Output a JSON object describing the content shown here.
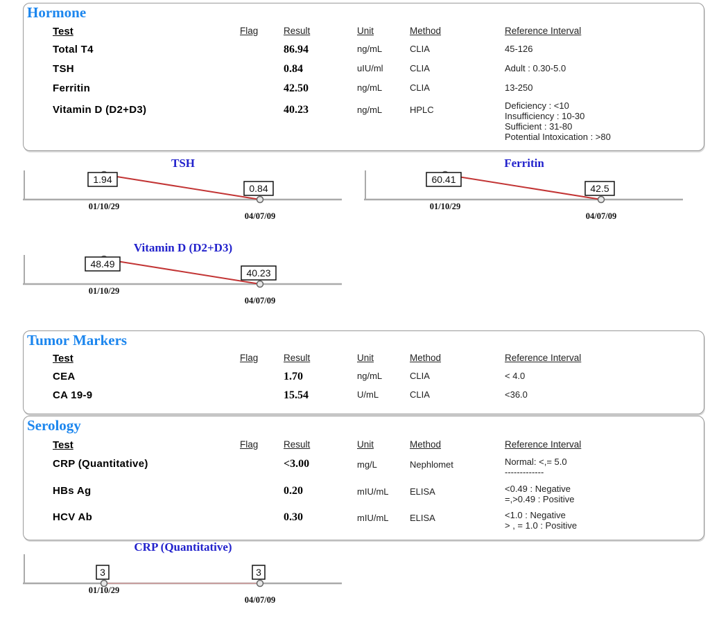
{
  "report": {
    "columns": {
      "test": "Test",
      "flag": "Flag",
      "result": "Result",
      "unit": "Unit",
      "method": "Method",
      "reference": "Reference Interval"
    },
    "sections": [
      {
        "title": "Hormone",
        "rows": [
          {
            "test": "Total T4",
            "flag": "",
            "result": "86.94",
            "unit": "ng/mL",
            "method": "CLIA",
            "reference": [
              "45-126"
            ]
          },
          {
            "test": "TSH",
            "flag": "",
            "result": "0.84",
            "unit": "uIU/ml",
            "method": "CLIA",
            "reference": [
              "Adult : 0.30-5.0"
            ]
          },
          {
            "test": "Ferritin",
            "flag": "",
            "result": "42.50",
            "unit": "ng/mL",
            "method": "CLIA",
            "reference": [
              "13-250"
            ]
          },
          {
            "test": "Vitamin D (D2+D3)",
            "flag": "",
            "result": "40.23",
            "unit": "ng/mL",
            "method": "HPLC",
            "reference": [
              "Deficiency : <10",
              "Insufficiency : 10-30",
              "Sufficient : 31-80",
              "Potential Intoxication : >80"
            ]
          }
        ]
      },
      {
        "title": "Tumor Markers",
        "rows": [
          {
            "test": "CEA",
            "flag": "",
            "result": "1.70",
            "unit": "ng/mL",
            "method": "CLIA",
            "reference": [
              "< 4.0"
            ]
          },
          {
            "test": "CA 19-9",
            "flag": "",
            "result": "15.54",
            "unit": "U/mL",
            "method": "CLIA",
            "reference": [
              "<36.0"
            ]
          }
        ]
      },
      {
        "title": "Serology",
        "rows": [
          {
            "test": "CRP (Quantitative)",
            "flag": "",
            "result": "<3.00",
            "unit": "mg/L",
            "method": "Nephlomet",
            "reference": [
              "Normal: <,= 5.0",
              "-------------"
            ]
          },
          {
            "test": "HBs Ag",
            "flag": "",
            "result": "0.20",
            "unit": "mIU/mL",
            "method": "ELISA",
            "reference": [
              "<0.49   : Negative",
              "=,>0.49   : Positive"
            ]
          },
          {
            "test": "HCV Ab",
            "flag": "",
            "result": "0.30",
            "unit": "mIU/mL",
            "method": "ELISA",
            "reference": [
              "<1.0 : Negative",
              "> , = 1.0 : Positive"
            ]
          }
        ]
      }
    ]
  },
  "chart_data": [
    {
      "type": "line",
      "title": "TSH",
      "x": [
        "01/10/29",
        "04/07/09"
      ],
      "values": [
        1.94,
        0.84
      ],
      "point_labels": [
        "1.94",
        "0.84"
      ],
      "line_color": "#c23434",
      "ylim": [
        0.84,
        1.94
      ],
      "grid": false,
      "legend": "none"
    },
    {
      "type": "line",
      "title": "Ferritin",
      "x": [
        "01/10/29",
        "04/07/09"
      ],
      "values": [
        60.41,
        42.5
      ],
      "point_labels": [
        "60.41",
        "42.5"
      ],
      "line_color": "#c23434",
      "ylim": [
        42.5,
        60.41
      ],
      "grid": false,
      "legend": "none"
    },
    {
      "type": "line",
      "title": "Vitamin D (D2+D3)",
      "x": [
        "01/10/29",
        "04/07/09"
      ],
      "values": [
        48.49,
        40.23
      ],
      "point_labels": [
        "48.49",
        "40.23"
      ],
      "line_color": "#c23434",
      "ylim": [
        40.23,
        48.49
      ],
      "grid": false,
      "legend": "none"
    },
    {
      "type": "line",
      "title": "CRP (Quantitative)",
      "x": [
        "01/10/29",
        "04/07/09"
      ],
      "values": [
        3,
        3
      ],
      "point_labels": [
        "3",
        "3"
      ],
      "line_color": "#c79e9e",
      "ylim": [
        3,
        3
      ],
      "grid": false,
      "legend": "none"
    }
  ],
  "colors": {
    "section_title": "#1c86ee",
    "chart_title": "#2222cc",
    "axis": "#aaaaaa",
    "marker_stroke": "#666666",
    "marker_fill": "#e6e6e6",
    "panel_border": "#999999",
    "trend_red": "#c23434",
    "trend_pale": "#c79e9e"
  }
}
